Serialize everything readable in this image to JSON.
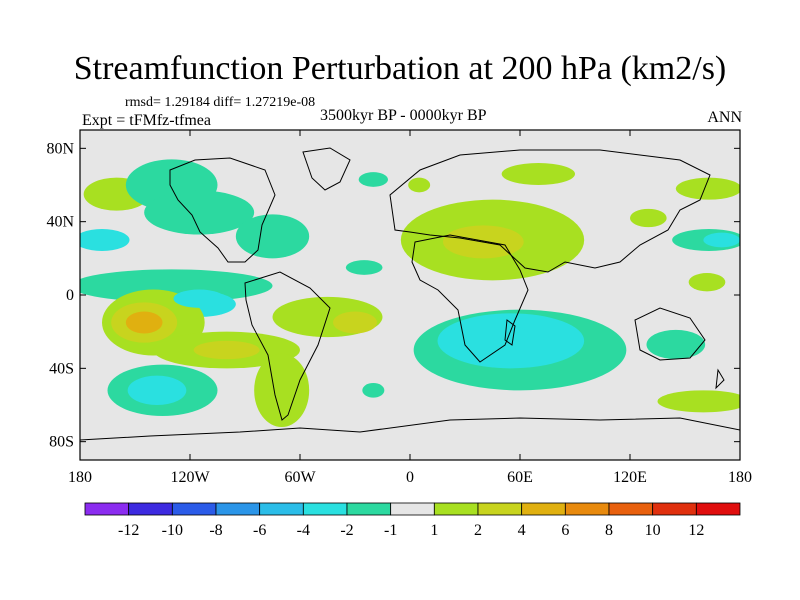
{
  "title": "Streamfunction Perturbation at 200 hPa (km2/s)",
  "stats": "rmsd= 1.29184 diff= 1.27219e-08",
  "experiment": "Expt = tFMfz-tfmea",
  "period": "3500kyr BP - 0000kyr BP",
  "season": "ANN",
  "map": {
    "lon_range": [
      -180,
      180
    ],
    "lat_range": [
      -90,
      90
    ],
    "y_ticks": [
      {
        "lat": 80,
        "label": "80N"
      },
      {
        "lat": 40,
        "label": "40N"
      },
      {
        "lat": 0,
        "label": "0"
      },
      {
        "lat": -40,
        "label": "40S"
      },
      {
        "lat": -80,
        "label": "80S"
      }
    ],
    "x_ticks": [
      {
        "lon": -180,
        "label": "180"
      },
      {
        "lon": -120,
        "label": "120W"
      },
      {
        "lon": -60,
        "label": "60W"
      },
      {
        "lon": 0,
        "label": "0"
      },
      {
        "lon": 60,
        "label": "60E"
      },
      {
        "lon": 120,
        "label": "120E"
      },
      {
        "lon": 180,
        "label": "180"
      }
    ],
    "background_color": "#e6e6e6",
    "anomalies": [
      {
        "lon": -160,
        "lat": 55,
        "rx": 18,
        "ry": 9,
        "value": 1.5
      },
      {
        "lon": -130,
        "lat": 60,
        "rx": 25,
        "ry": 14,
        "value": -1.5
      },
      {
        "lon": -115,
        "lat": 45,
        "rx": 30,
        "ry": 12,
        "value": -1.5
      },
      {
        "lon": -75,
        "lat": 32,
        "rx": 20,
        "ry": 12,
        "value": -1.5
      },
      {
        "lon": -168,
        "lat": 30,
        "rx": 15,
        "ry": 6,
        "value": -2.5
      },
      {
        "lon": -20,
        "lat": 63,
        "rx": 8,
        "ry": 4,
        "value": -1.5
      },
      {
        "lon": 5,
        "lat": 60,
        "rx": 6,
        "ry": 4,
        "value": 1.5
      },
      {
        "lon": 70,
        "lat": 66,
        "rx": 20,
        "ry": 6,
        "value": 1.5
      },
      {
        "lon": 45,
        "lat": 30,
        "rx": 50,
        "ry": 22,
        "value": 1.5
      },
      {
        "lon": 40,
        "lat": 29,
        "rx": 22,
        "ry": 9,
        "value": 3
      },
      {
        "lon": 130,
        "lat": 42,
        "rx": 10,
        "ry": 5,
        "value": 1.5
      },
      {
        "lon": 163,
        "lat": 30,
        "rx": 20,
        "ry": 6,
        "value": -1.5
      },
      {
        "lon": 170,
        "lat": 30,
        "rx": 10,
        "ry": 4,
        "value": -2.5
      },
      {
        "lon": 163,
        "lat": 58,
        "rx": 18,
        "ry": 6,
        "value": 1.5
      },
      {
        "lon": 162,
        "lat": 7,
        "rx": 10,
        "ry": 5,
        "value": 1.5
      },
      {
        "lon": -130,
        "lat": 5,
        "rx": 55,
        "ry": 9,
        "value": -1.5
      },
      {
        "lon": -115,
        "lat": -5,
        "rx": 20,
        "ry": 7,
        "value": -2.5
      },
      {
        "lon": -25,
        "lat": 15,
        "rx": 10,
        "ry": 4,
        "value": -1.5
      },
      {
        "lon": -45,
        "lat": -12,
        "rx": 30,
        "ry": 11,
        "value": 1.5
      },
      {
        "lon": -30,
        "lat": -15,
        "rx": 12,
        "ry": 6,
        "value": 3
      },
      {
        "lon": -140,
        "lat": -15,
        "rx": 28,
        "ry": 18,
        "value": 1.5
      },
      {
        "lon": -100,
        "lat": -30,
        "rx": 40,
        "ry": 10,
        "value": 1.5
      },
      {
        "lon": -70,
        "lat": -52,
        "rx": 15,
        "ry": 20,
        "value": 1.5
      },
      {
        "lon": -145,
        "lat": -15,
        "rx": 18,
        "ry": 11,
        "value": 3
      },
      {
        "lon": -145,
        "lat": -15,
        "rx": 10,
        "ry": 6,
        "value": 5
      },
      {
        "lon": -100,
        "lat": -30,
        "rx": 18,
        "ry": 5,
        "value": 3
      },
      {
        "lon": -135,
        "lat": -52,
        "rx": 30,
        "ry": 14,
        "value": -1.5
      },
      {
        "lon": -138,
        "lat": -52,
        "rx": 16,
        "ry": 8,
        "value": -2.5
      },
      {
        "lon": -115,
        "lat": -2,
        "rx": 14,
        "ry": 5,
        "value": -3
      },
      {
        "lon": -20,
        "lat": -52,
        "rx": 6,
        "ry": 4,
        "value": -1.5
      },
      {
        "lon": 60,
        "lat": -30,
        "rx": 58,
        "ry": 22,
        "value": -1.5
      },
      {
        "lon": 55,
        "lat": -25,
        "rx": 40,
        "ry": 15,
        "value": -2.5
      },
      {
        "lon": 55,
        "lat": -22,
        "rx": 10,
        "ry": 5,
        "value": -3.5
      },
      {
        "lon": 145,
        "lat": -27,
        "rx": 16,
        "ry": 8,
        "value": -1.5
      },
      {
        "lon": 160,
        "lat": -58,
        "rx": 25,
        "ry": 6,
        "value": 1.5
      }
    ]
  },
  "colorbar": {
    "colors": [
      "#8b2cf0",
      "#3d2ae0",
      "#2b5be8",
      "#2b95e8",
      "#2bbde8",
      "#2ae0e0",
      "#2cd9a0",
      "#e6e6e6",
      "#a8e021",
      "#c8d41e",
      "#e0b010",
      "#e88a0e",
      "#e8600e",
      "#e0300e",
      "#e00e0e"
    ],
    "labels": [
      "-12",
      "-10",
      "-8",
      "-6",
      "-4",
      "-2",
      "-1",
      "1",
      "2",
      "4",
      "6",
      "8",
      "10",
      "12"
    ]
  }
}
